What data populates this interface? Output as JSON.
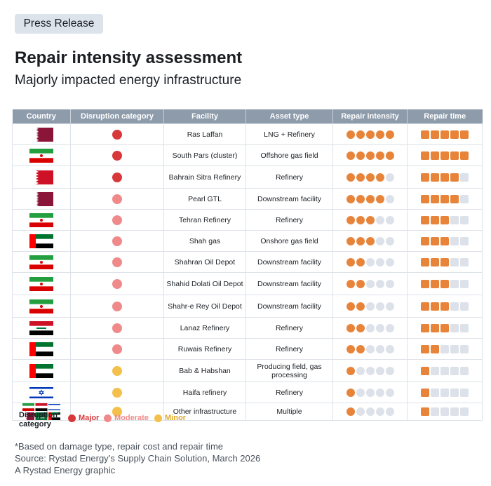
{
  "badge": "Press Release",
  "title": "Repair intensity assessment",
  "subtitle": "Majorly impacted energy infrastructure",
  "colors": {
    "major": "#d9383a",
    "moderate": "#f08a8a",
    "minor": "#f4c04c",
    "filled": "#e8843a",
    "empty": "#dde2ea",
    "header": "#8d9bab"
  },
  "chart_data": {
    "type": "table",
    "columns": [
      "Country",
      "Disruption category",
      "Facility",
      "Asset type",
      "Repair intensity",
      "Repair time"
    ],
    "scale_max": 5,
    "rows": [
      {
        "flag": "qatar",
        "category": "major",
        "facility": "Ras Laffan",
        "asset": "LNG + Refinery",
        "intensity": 5,
        "time": 5
      },
      {
        "flag": "iran",
        "category": "major",
        "facility": "South Pars (cluster)",
        "asset": "Offshore gas field",
        "intensity": 5,
        "time": 5
      },
      {
        "flag": "bahrain",
        "category": "major",
        "facility": "Bahrain Sitra Refinery",
        "asset": "Refinery",
        "intensity": 4,
        "time": 4
      },
      {
        "flag": "qatar",
        "category": "moderate",
        "facility": "Pearl GTL",
        "asset": "Downstream facility",
        "intensity": 4,
        "time": 4
      },
      {
        "flag": "iran",
        "category": "moderate",
        "facility": "Tehran Refinery",
        "asset": "Refinery",
        "intensity": 3,
        "time": 3
      },
      {
        "flag": "uae",
        "category": "moderate",
        "facility": "Shah gas",
        "asset": "Onshore gas field",
        "intensity": 3,
        "time": 3
      },
      {
        "flag": "iran",
        "category": "moderate",
        "facility": "Shahran Oil Depot",
        "asset": "Downstream facility",
        "intensity": 2,
        "time": 3
      },
      {
        "flag": "iran",
        "category": "moderate",
        "facility": "Shahid Dolati Oil Depot",
        "asset": "Downstream facility",
        "intensity": 2,
        "time": 3
      },
      {
        "flag": "iran",
        "category": "moderate",
        "facility": "Shahr-e Rey Oil Depot",
        "asset": "Downstream facility",
        "intensity": 2,
        "time": 3
      },
      {
        "flag": "iraq",
        "category": "moderate",
        "facility": "Lanaz Refinery",
        "asset": "Refinery",
        "intensity": 2,
        "time": 3
      },
      {
        "flag": "uae",
        "category": "moderate",
        "facility": "Ruwais Refinery",
        "asset": "Refinery",
        "intensity": 2,
        "time": 2
      },
      {
        "flag": "uae",
        "category": "minor",
        "facility": "Bab & Habshan",
        "asset": "Producing field, gas processing",
        "intensity": 1,
        "time": 1
      },
      {
        "flag": "israel",
        "category": "minor",
        "facility": "Haifa refinery",
        "asset": "Refinery",
        "intensity": 1,
        "time": 1
      },
      {
        "flag": "multiple",
        "category": "minor",
        "facility": "Other infrastructure",
        "asset": "Multiple",
        "intensity": 1,
        "time": 1
      }
    ]
  },
  "legend": {
    "label": "Disruption* category",
    "items": [
      {
        "key": "major",
        "label": "Major"
      },
      {
        "key": "moderate",
        "label": "Moderate"
      },
      {
        "key": "minor",
        "label": "Minor"
      }
    ]
  },
  "footnotes": [
    "*Based on damage type, repair cost and repair time",
    "Source: Rystad Energy’s Supply Chain Solution, March 2026",
    "A Rystad Energy graphic"
  ]
}
